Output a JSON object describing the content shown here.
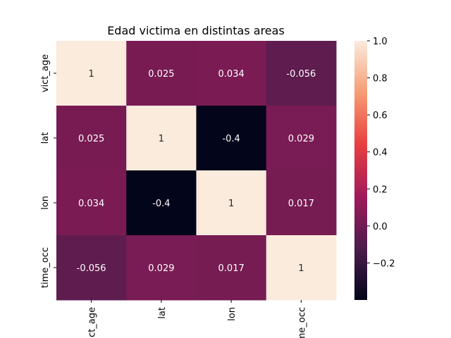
{
  "chart_data": {
    "type": "heatmap",
    "title": "Edad victima en distintas areas",
    "rows": [
      "vict_age",
      "lat",
      "lon",
      "time_occ"
    ],
    "columns": [
      "vict_age",
      "lat",
      "lon",
      "time_occ"
    ],
    "values": [
      [
        1,
        0.025,
        0.034,
        -0.056
      ],
      [
        0.025,
        1,
        -0.4,
        0.029
      ],
      [
        0.034,
        -0.4,
        1,
        0.017
      ],
      [
        -0.056,
        0.029,
        0.017,
        1
      ]
    ],
    "annotations": [
      [
        "1",
        "0.025",
        "0.034",
        "-0.056"
      ],
      [
        "0.025",
        "1",
        "-0.4",
        "0.029"
      ],
      [
        "0.034",
        "-0.4",
        "1",
        "0.017"
      ],
      [
        "-0.056",
        "0.029",
        "0.017",
        "1"
      ]
    ],
    "colorbar": {
      "min": -0.4,
      "max": 1.0,
      "ticks": [
        -0.2,
        0.0,
        0.2,
        0.4,
        0.6,
        0.8,
        1.0
      ],
      "tick_labels": [
        "−0.2",
        "0.0",
        "0.2",
        "0.4",
        "0.6",
        "0.8",
        "1.0"
      ],
      "colormap": "rocket"
    },
    "colormap_stops": [
      "#03051a",
      "#4c1d4b",
      "#a11a5b",
      "#e83f3f",
      "#f69c73",
      "#faebdd"
    ],
    "grid": false
  }
}
